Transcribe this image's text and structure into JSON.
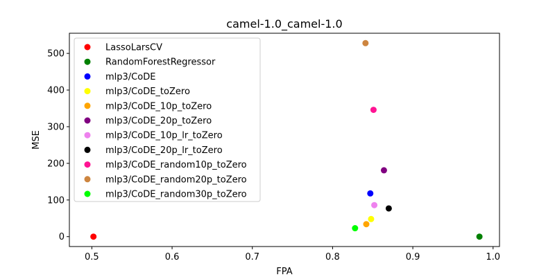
{
  "chart_data": {
    "type": "scatter",
    "title": "camel-1.0_camel-1.0",
    "xlabel": "FPA",
    "ylabel": "MSE",
    "xlim": [
      0.472,
      1.008
    ],
    "ylim": [
      -27,
      555
    ],
    "xticks": [
      {
        "value": 0.5,
        "label": "0.5"
      },
      {
        "value": 0.6,
        "label": "0.6"
      },
      {
        "value": 0.7,
        "label": "0.7"
      },
      {
        "value": 0.8,
        "label": "0.8"
      },
      {
        "value": 0.9,
        "label": "0.9"
      },
      {
        "value": 1.0,
        "label": "1.0"
      }
    ],
    "yticks": [
      {
        "value": 0,
        "label": "0"
      },
      {
        "value": 100,
        "label": "100"
      },
      {
        "value": 200,
        "label": "200"
      },
      {
        "value": 300,
        "label": "300"
      },
      {
        "value": 400,
        "label": "400"
      },
      {
        "value": 500,
        "label": "500"
      }
    ],
    "grid": false,
    "legend_position": "top-left",
    "series": [
      {
        "name": "LassoLarsCV",
        "color": "#ff0000",
        "points": [
          [
            0.502,
            0
          ]
        ]
      },
      {
        "name": "RandomForestRegressor",
        "color": "#008000",
        "points": [
          [
            0.983,
            0
          ]
        ]
      },
      {
        "name": "mlp3/CoDE",
        "color": "#0000ff",
        "points": [
          [
            0.847,
            118
          ]
        ]
      },
      {
        "name": "mlp3/CoDE_toZero",
        "color": "#ffff00",
        "points": [
          [
            0.848,
            48
          ]
        ]
      },
      {
        "name": "mlp3/CoDE_10p_toZero",
        "color": "#ffa500",
        "points": [
          [
            0.842,
            34
          ]
        ]
      },
      {
        "name": "mlp3/CoDE_20p_toZero",
        "color": "#800080",
        "points": [
          [
            0.864,
            181
          ]
        ]
      },
      {
        "name": "mlp3/CoDE_10p_lr_toZero",
        "color": "#ee82ee",
        "points": [
          [
            0.852,
            86
          ]
        ]
      },
      {
        "name": "mlp3/CoDE_20p_lr_toZero",
        "color": "#000000",
        "points": [
          [
            0.87,
            77
          ]
        ]
      },
      {
        "name": "mlp3/CoDE_random10p_toZero",
        "color": "#ff1493",
        "points": [
          [
            0.851,
            346
          ]
        ]
      },
      {
        "name": "mlp3/CoDE_random20p_toZero",
        "color": "#cd853f",
        "points": [
          [
            0.841,
            528
          ]
        ]
      },
      {
        "name": "mlp3/CoDE_random30p_toZero",
        "color": "#00ff00",
        "points": [
          [
            0.828,
            23
          ]
        ]
      }
    ]
  }
}
